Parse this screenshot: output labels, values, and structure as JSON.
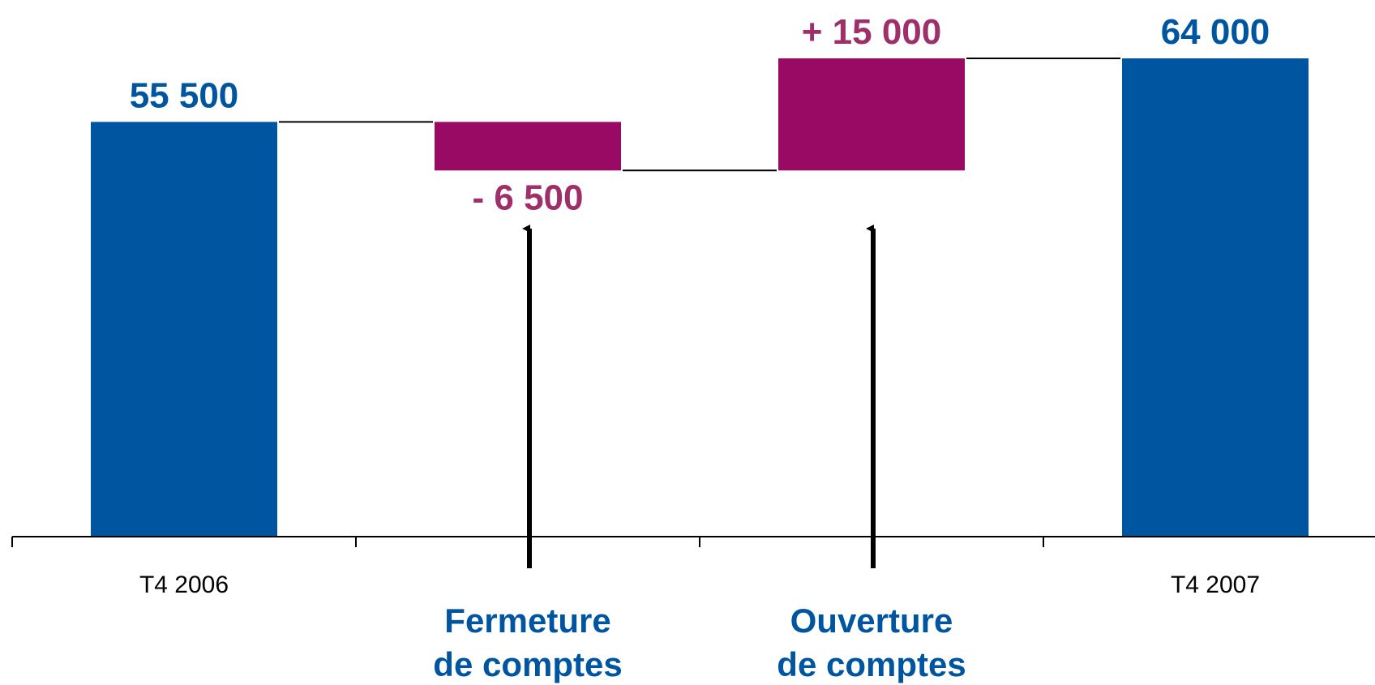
{
  "chart_data": {
    "type": "waterfall",
    "categories": [
      "T4 2006",
      "",
      "",
      "T4 2007"
    ],
    "steps": [
      {
        "category": "T4 2006",
        "kind": "total",
        "value": 55500,
        "label": "55 500"
      },
      {
        "category": "",
        "kind": "delta",
        "value": -6500,
        "label": "- 6 500"
      },
      {
        "category": "",
        "kind": "delta",
        "value": 15000,
        "label": "+ 15 000"
      },
      {
        "category": "T4 2007",
        "kind": "total",
        "value": 64000,
        "label": "64 000"
      }
    ],
    "annotations": [
      {
        "step": 1,
        "line1": "Fermeture",
        "line2": "de comptes"
      },
      {
        "step": 2,
        "line1": "Ouverture",
        "line2": "de comptes"
      }
    ],
    "ylim": [
      0,
      64000
    ],
    "grid": false,
    "legend": "none"
  },
  "colors": {
    "total": "#0055a0",
    "delta": "#990a64",
    "total_label": "#0055a0",
    "delta_label": "#9e2f6a",
    "annotation": "#0055a0",
    "axis": "#000000"
  }
}
